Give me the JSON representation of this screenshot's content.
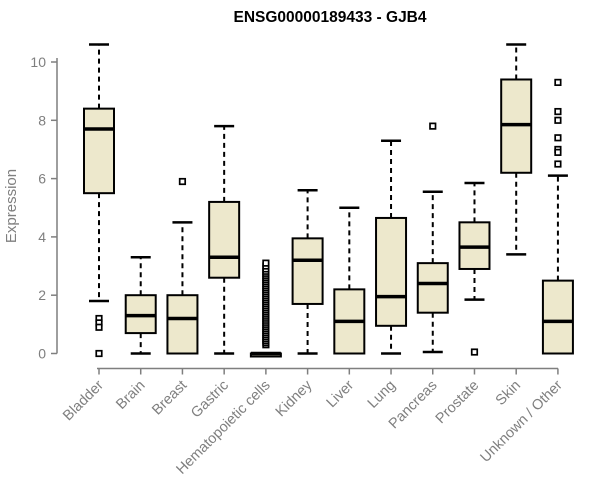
{
  "title": "ENSG00000189433 - GJB4",
  "chart_data": {
    "type": "boxplot",
    "title": "ENSG00000189433 - GJB4",
    "xlabel": "",
    "ylabel": "Expression",
    "ylim": [
      0,
      10
    ],
    "yticks": [
      0,
      2,
      4,
      6,
      8,
      10
    ],
    "grid": false,
    "legend": "none",
    "categories": [
      "Bladder",
      "Brain",
      "Breast",
      "Gastric",
      "Hematopoietic cells",
      "Kidney",
      "Liver",
      "Lung",
      "Pancreas",
      "Prostate",
      "Skin",
      "Unknown / Other"
    ],
    "series": [
      {
        "category": "Bladder",
        "whisker_low": 1.8,
        "q1": 5.5,
        "median": 7.7,
        "q3": 8.4,
        "whisker_high": 10.6,
        "outliers": [
          1.2,
          1.05,
          0.9,
          0.0
        ]
      },
      {
        "category": "Brain",
        "whisker_low": 0.0,
        "q1": 0.7,
        "median": 1.3,
        "q3": 2.0,
        "whisker_high": 3.3,
        "outliers": []
      },
      {
        "category": "Breast",
        "whisker_low": 0.0,
        "q1": 0.0,
        "median": 1.2,
        "q3": 2.0,
        "whisker_high": 4.5,
        "outliers": [
          5.9
        ]
      },
      {
        "category": "Gastric",
        "whisker_low": 0.0,
        "q1": 2.6,
        "median": 3.3,
        "q3": 5.2,
        "whisker_high": 7.8,
        "outliers": []
      },
      {
        "category": "Hematopoietic cells",
        "whisker_low": 0.0,
        "q1": 0.0,
        "median": 0.0,
        "q3": 0.0,
        "whisker_high": 0.0,
        "outliers": [
          0.3,
          0.37,
          0.44,
          0.51,
          0.58,
          0.65,
          0.72,
          0.79,
          0.86,
          0.93,
          1.0,
          1.07,
          1.14,
          1.21,
          1.28,
          1.35,
          1.42,
          1.49,
          1.56,
          1.63,
          1.7,
          1.77,
          1.84,
          1.91,
          1.98,
          2.05,
          2.12,
          2.19,
          2.26,
          2.33,
          2.4,
          2.47,
          2.54,
          2.61,
          2.68,
          2.75,
          2.82,
          2.9,
          3.0,
          3.1
        ]
      },
      {
        "category": "Kidney",
        "whisker_low": 0.0,
        "q1": 1.7,
        "median": 3.2,
        "q3": 3.95,
        "whisker_high": 5.6,
        "outliers": []
      },
      {
        "category": "Liver",
        "whisker_low": 0.0,
        "q1": 0.0,
        "median": 1.1,
        "q3": 2.2,
        "whisker_high": 5.0,
        "outliers": []
      },
      {
        "category": "Lung",
        "whisker_low": 0.0,
        "q1": 0.95,
        "median": 1.95,
        "q3": 4.65,
        "whisker_high": 7.3,
        "outliers": []
      },
      {
        "category": "Pancreas",
        "whisker_low": 0.05,
        "q1": 1.4,
        "median": 2.4,
        "q3": 3.1,
        "whisker_high": 5.55,
        "outliers": [
          7.8
        ]
      },
      {
        "category": "Prostate",
        "whisker_low": 1.85,
        "q1": 2.9,
        "median": 3.65,
        "q3": 4.5,
        "whisker_high": 5.85,
        "outliers": [
          0.05
        ]
      },
      {
        "category": "Skin",
        "whisker_low": 3.4,
        "q1": 6.2,
        "median": 7.85,
        "q3": 9.4,
        "whisker_high": 10.6,
        "outliers": []
      },
      {
        "category": "Unknown / Other",
        "whisker_low": 0.0,
        "q1": 0.0,
        "median": 1.1,
        "q3": 2.5,
        "whisker_high": 6.1,
        "outliers": [
          9.3,
          8.3,
          8.0,
          7.4,
          7.0,
          6.9,
          6.5
        ]
      }
    ],
    "colors": {
      "box_fill": "#EDE8CC",
      "box_border": "#000000",
      "median": "#000000",
      "whisker": "#000000",
      "outlier_stroke": "#000000",
      "outlier_fill": "#ffffff",
      "axis": "#7f7f7f",
      "tick_label": "#7f7f7f",
      "title": "#000000",
      "background": "#ffffff"
    }
  }
}
